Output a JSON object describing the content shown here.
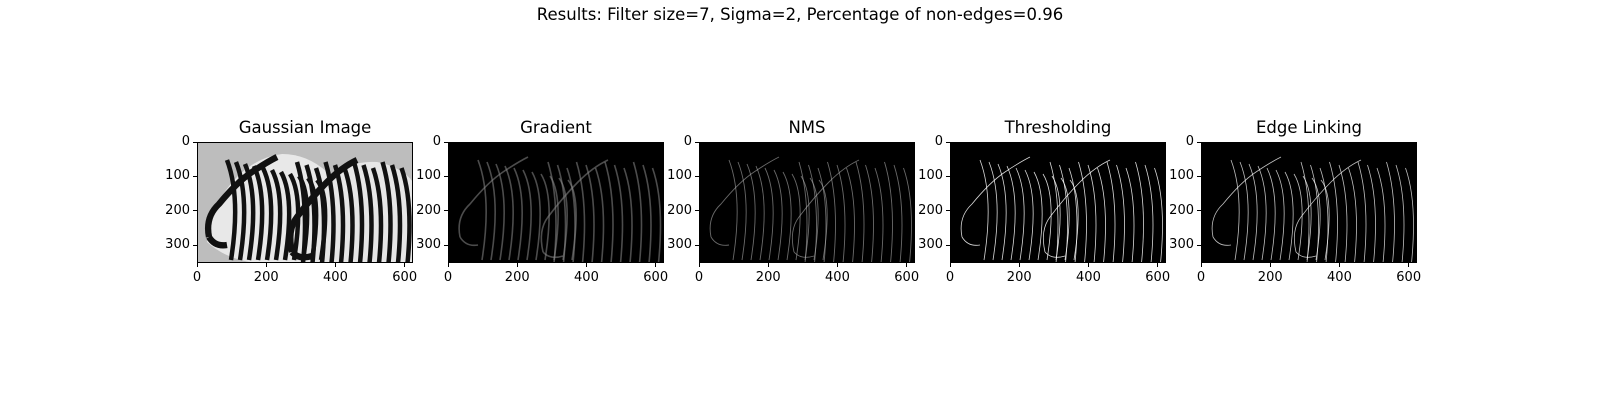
{
  "figure": {
    "suptitle": "Results: Filter size=7, Sigma=2, Percentage of non-edges=0.96"
  },
  "panels": [
    {
      "title": "Gaussian Image"
    },
    {
      "title": "Gradient"
    },
    {
      "title": "NMS"
    },
    {
      "title": "Thresholding"
    },
    {
      "title": "Edge Linking"
    }
  ],
  "axes": {
    "y_ticks": [
      "0",
      "100",
      "200",
      "300"
    ],
    "x_ticks": [
      "0",
      "200",
      "400",
      "600"
    ]
  }
}
